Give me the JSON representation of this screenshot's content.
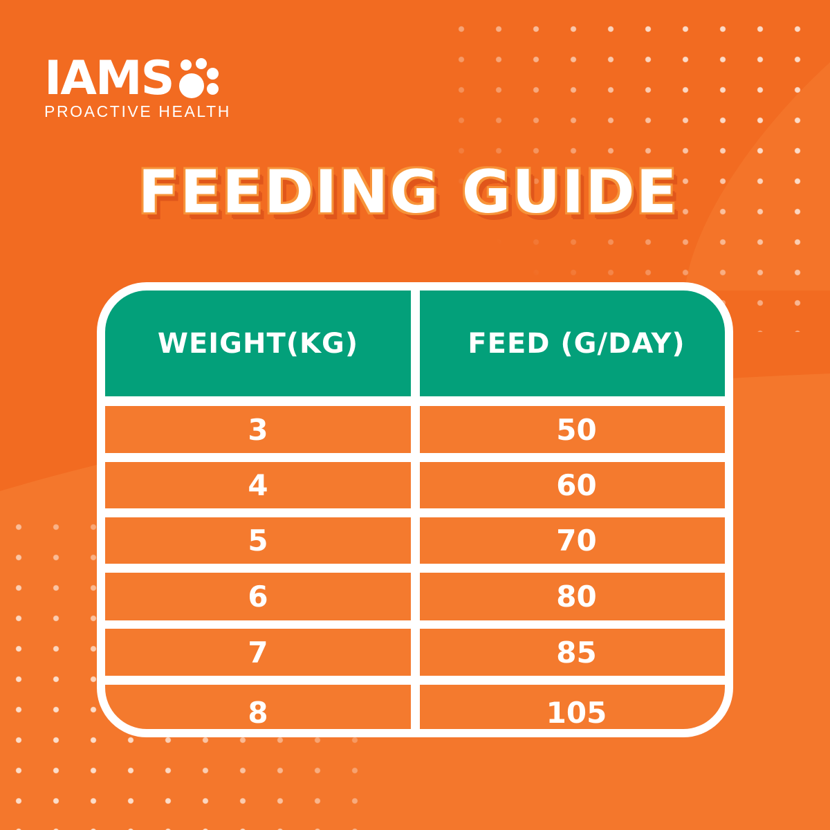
{
  "logo": {
    "brand": "IAMS",
    "tagline": "PROACTIVE HEALTH"
  },
  "title": "FEEDING GUIDE",
  "table": {
    "headers": [
      "WEIGHT(KG)",
      "FEED (G/DAY)"
    ],
    "rows": [
      [
        "3",
        "50"
      ],
      [
        "4",
        "60"
      ],
      [
        "5",
        "70"
      ],
      [
        "6",
        "80"
      ],
      [
        "7",
        "85"
      ],
      [
        "8",
        "105"
      ]
    ]
  },
  "colors": {
    "background": "#f26b21",
    "header": "#03a07a",
    "row": "#f47a2e",
    "border": "#ffffff"
  }
}
